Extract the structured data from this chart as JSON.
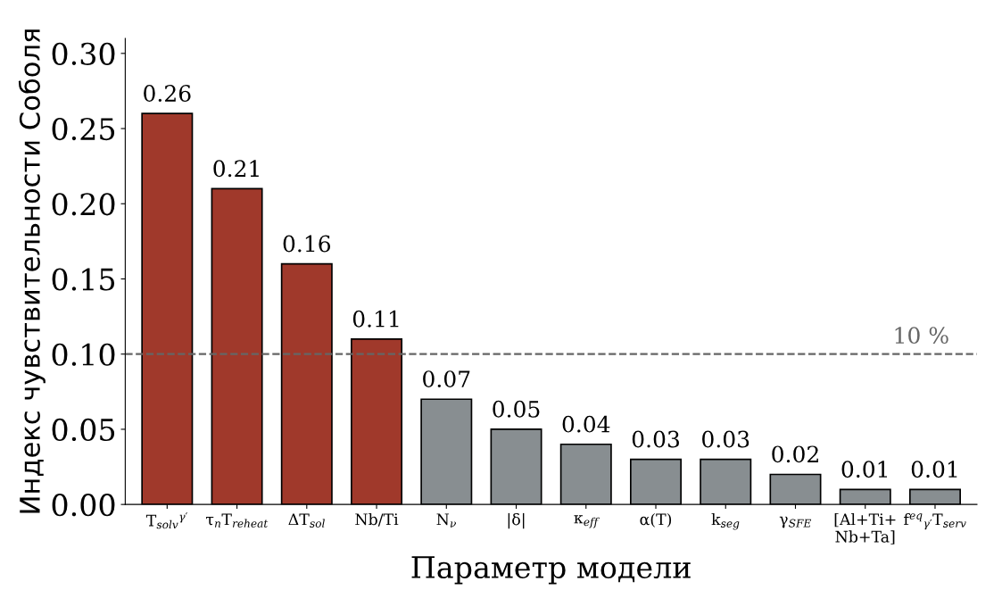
{
  "chart_data": {
    "type": "bar",
    "xlabel": "Параметр модели",
    "ylabel": "Индекс чувствительности Соболя",
    "categories": [
      "T$_{solv}$$^{γ′}$",
      "τ$_{n}$T$_{reheat}$",
      "ΔT$_{sol}$",
      "Nb/Ti",
      "N$_{ν}$",
      "|δ|",
      "κ$_{eff}$",
      "α(T)",
      "k$_{seg}$",
      "γ$_{SFE}$",
      "[Al+Ti+\nNb+Ta]",
      "f$^{eq}$$_{γ′}$T$_{serv}$"
    ],
    "values": [
      0.26,
      0.21,
      0.16,
      0.11,
      0.07,
      0.05,
      0.04,
      0.03,
      0.03,
      0.02,
      0.01,
      0.01
    ],
    "colors": [
      "#a0392b",
      "#a0392b",
      "#a0392b",
      "#a0392b",
      "#888e91",
      "#888e91",
      "#888e91",
      "#888e91",
      "#888e91",
      "#888e91",
      "#888e91",
      "#888e91"
    ],
    "ylim": [
      0,
      0.31
    ],
    "yticks": [
      {
        "value": 0,
        "label": "0.00"
      },
      {
        "value": 0.05,
        "label": "0.05"
      },
      {
        "value": 0.1,
        "label": "0.10"
      },
      {
        "value": 0.15,
        "label": "0.15"
      },
      {
        "value": 0.2,
        "label": "0.20"
      },
      {
        "value": 0.25,
        "label": "0.25"
      },
      {
        "value": 0.3,
        "label": "0.30"
      }
    ],
    "data_labels": true,
    "ref_lines": [
      {
        "axis": "y",
        "value": 0.1,
        "label": "10 %",
        "color": "#666666",
        "line_style": "dashed"
      }
    ],
    "grid": false,
    "legend": false
  }
}
